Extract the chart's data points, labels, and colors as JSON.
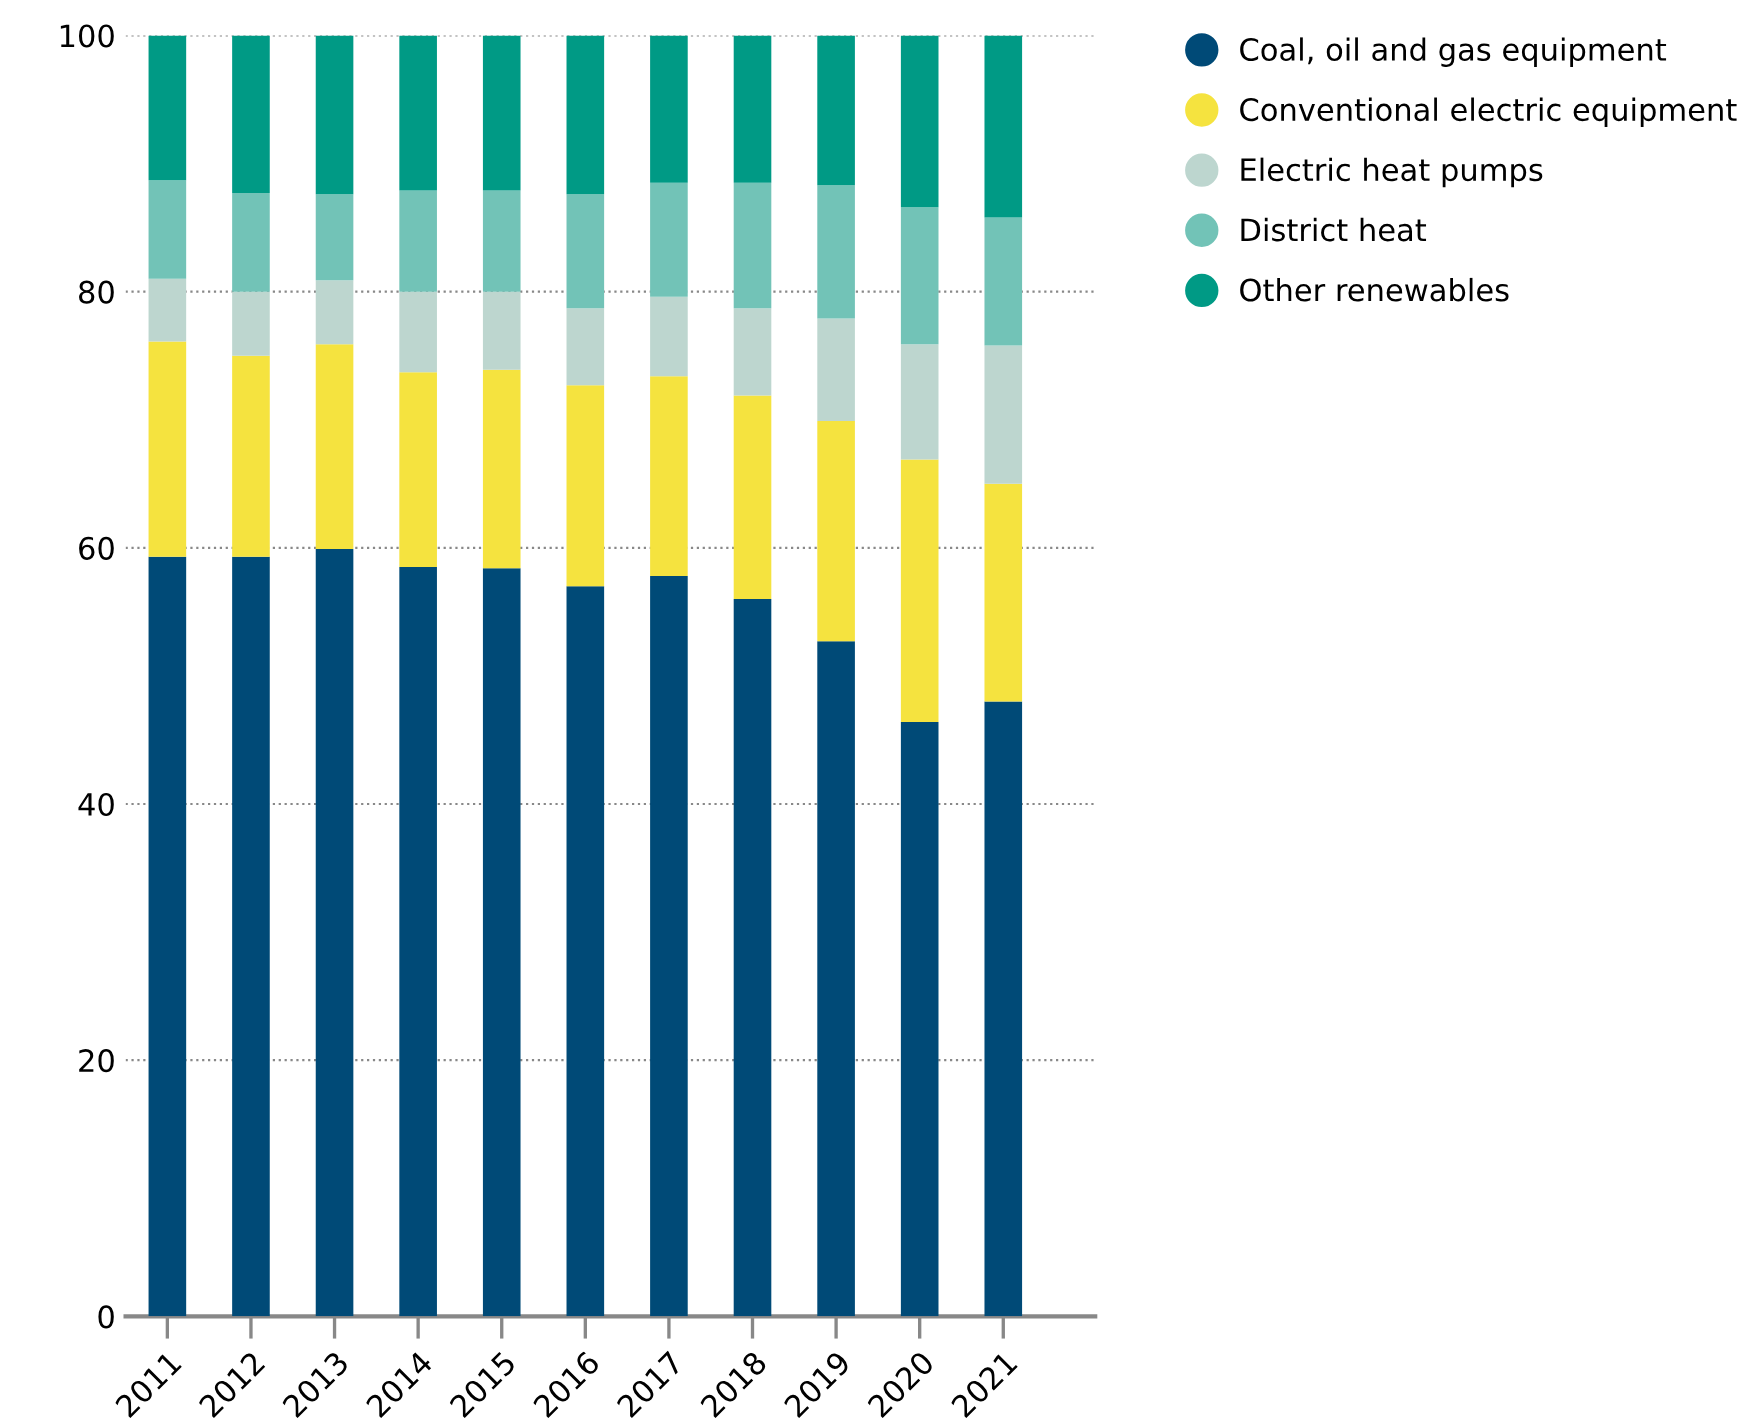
{
  "chart_data": {
    "type": "bar",
    "stacked": true,
    "categories": [
      "2011",
      "2012",
      "2013",
      "2014",
      "2015",
      "2016",
      "2017",
      "2018",
      "2019",
      "2020",
      "2021"
    ],
    "series": [
      {
        "name": "Coal, oil and gas equipment",
        "color": "#004a77",
        "values": [
          59.3,
          59.3,
          59.9,
          58.5,
          58.4,
          57.0,
          57.8,
          56.0,
          52.7,
          46.4,
          48.0
        ]
      },
      {
        "name": "Conventional electric equipment",
        "color": "#f5e33f",
        "values": [
          16.8,
          15.7,
          16.0,
          15.2,
          15.5,
          15.7,
          15.6,
          15.9,
          17.2,
          20.5,
          17.0
        ]
      },
      {
        "name": "Electric heat pumps",
        "color": "#bdd6cf",
        "values": [
          4.9,
          5.0,
          5.0,
          6.3,
          6.1,
          6.0,
          6.2,
          6.8,
          8.0,
          9.0,
          10.8
        ]
      },
      {
        "name": "District heat",
        "color": "#72c3b7",
        "values": [
          7.7,
          7.7,
          6.7,
          7.9,
          7.9,
          8.9,
          8.9,
          9.8,
          10.4,
          10.7,
          10.0
        ]
      },
      {
        "name": "Other renewables",
        "color": "#009a85",
        "values": [
          11.3,
          12.3,
          12.4,
          12.1,
          12.1,
          12.4,
          11.5,
          11.5,
          11.7,
          13.4,
          14.2
        ]
      }
    ],
    "ylim": [
      0,
      100
    ],
    "yticks": [
      0,
      20,
      40,
      60,
      80,
      100
    ],
    "grid": "y",
    "legend": "top right",
    "marker": "circle"
  }
}
